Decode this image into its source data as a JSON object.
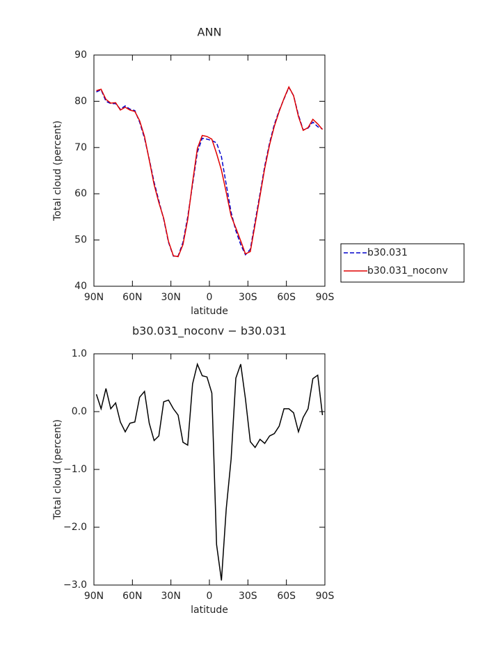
{
  "chart_data": [
    {
      "type": "line",
      "title": "ANN",
      "xlabel": "latitude",
      "ylabel": "Total cloud (percent)",
      "x": [
        88.1,
        84.4,
        80.6,
        76.9,
        73.1,
        69.4,
        65.6,
        61.9,
        58.1,
        54.4,
        50.6,
        46.9,
        43.1,
        39.4,
        35.6,
        31.9,
        28.1,
        24.4,
        20.6,
        16.9,
        13.1,
        9.4,
        5.6,
        1.9,
        -1.9,
        -5.6,
        -9.4,
        -13.1,
        -16.9,
        -20.6,
        -24.4,
        -28.1,
        -31.9,
        -35.6,
        -39.4,
        -43.1,
        -46.9,
        -50.6,
        -54.4,
        -58.1,
        -61.9,
        -65.6,
        -69.4,
        -73.1,
        -76.9,
        -80.6,
        -84.4,
        -88.1
      ],
      "xlim": [
        90,
        -90
      ],
      "xticks": [
        {
          "value": 90,
          "label": "90N"
        },
        {
          "value": 60,
          "label": "60N"
        },
        {
          "value": 30,
          "label": "30N"
        },
        0,
        {
          "value": -30,
          "label": "30S"
        },
        {
          "value": -60,
          "label": "60S"
        },
        {
          "value": -90,
          "label": "90S"
        }
      ],
      "ylim": [
        40,
        90
      ],
      "yticks": [
        40,
        50,
        60,
        70,
        80,
        90
      ],
      "series": [
        {
          "name": "b30.031",
          "color": "#0000cc",
          "linestyle": "dashed",
          "values": [
            82,
            82.5,
            80,
            79.5,
            79.5,
            78.3,
            79,
            78.3,
            78,
            75.5,
            72,
            67.5,
            62.5,
            58.5,
            54.5,
            49.5,
            46.5,
            46.5,
            49.5,
            55,
            62,
            69,
            72,
            71.8,
            71.5,
            71,
            68,
            62,
            56,
            52,
            49,
            46.8,
            48,
            54,
            60,
            66,
            71,
            75,
            78,
            80.5,
            83,
            81.2,
            77,
            73.8,
            74.2,
            75.5,
            74.5,
            74
          ]
        },
        {
          "name": "b30.031_noconv",
          "color": "#e00000",
          "linestyle": "solid",
          "values": [
            82.3,
            82.6,
            80.4,
            79.6,
            79.7,
            78.1,
            78.7,
            78.1,
            77.8,
            75.8,
            72.4,
            67.3,
            62.0,
            58.1,
            54.7,
            49.7,
            46.6,
            46.4,
            49.0,
            54.4,
            62.5,
            69.8,
            72.6,
            72.4,
            71.8,
            68.7,
            65.1,
            60.3,
            55.2,
            52.6,
            49.8,
            47.0,
            47.5,
            53.4,
            59.5,
            65.5,
            70.6,
            74.6,
            77.8,
            80.6,
            83.1,
            81.2,
            76.7,
            73.7,
            74.3,
            76.1,
            75.1,
            73.9
          ]
        }
      ]
    },
    {
      "type": "line",
      "title": "b30.031_noconv − b30.031",
      "xlabel": "latitude",
      "ylabel": "Total cloud (percent)",
      "x": [
        88.1,
        84.4,
        80.6,
        76.9,
        73.1,
        69.4,
        65.6,
        61.9,
        58.1,
        54.4,
        50.6,
        46.9,
        43.1,
        39.4,
        35.6,
        31.9,
        28.1,
        24.4,
        20.6,
        16.9,
        13.1,
        9.4,
        5.6,
        1.9,
        -1.9,
        -5.6,
        -9.4,
        -13.1,
        -16.9,
        -20.6,
        -24.4,
        -28.1,
        -31.9,
        -35.6,
        -39.4,
        -43.1,
        -46.9,
        -50.6,
        -54.4,
        -58.1,
        -61.9,
        -65.6,
        -69.4,
        -73.1,
        -76.9,
        -80.6,
        -84.4,
        -88.1
      ],
      "xlim": [
        90,
        -90
      ],
      "xticks": [
        {
          "value": 90,
          "label": "90N"
        },
        {
          "value": 60,
          "label": "60N"
        },
        {
          "value": 30,
          "label": "30N"
        },
        0,
        {
          "value": -30,
          "label": "30S"
        },
        {
          "value": -60,
          "label": "60S"
        },
        {
          "value": -90,
          "label": "90S"
        }
      ],
      "ylim": [
        -3,
        1
      ],
      "yticks": [
        {
          "value": -3,
          "label": "−3.0"
        },
        {
          "value": -2,
          "label": "−2.0"
        },
        {
          "value": -1,
          "label": "−1.0"
        },
        {
          "value": 0,
          "label": "0.0"
        },
        {
          "value": 1,
          "label": "1.0"
        }
      ],
      "series": [
        {
          "color": "#000000",
          "linestyle": "solid",
          "values": [
            0.3,
            0.05,
            0.4,
            0.05,
            0.15,
            -0.18,
            -0.35,
            -0.2,
            -0.18,
            0.25,
            0.35,
            -0.2,
            -0.5,
            -0.42,
            0.17,
            0.2,
            0.05,
            -0.06,
            -0.53,
            -0.58,
            0.48,
            0.82,
            0.62,
            0.6,
            0.32,
            -2.3,
            -2.92,
            -1.68,
            -0.82,
            0.58,
            0.82,
            0.22,
            -0.52,
            -0.62,
            -0.48,
            -0.55,
            -0.42,
            -0.38,
            -0.25,
            0.05,
            0.05,
            -0.02,
            -0.35,
            -0.1,
            0.05,
            0.57,
            0.63,
            -0.06
          ]
        }
      ]
    }
  ]
}
